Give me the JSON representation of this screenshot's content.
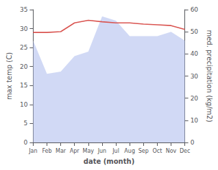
{
  "chart_data": {
    "type": "line",
    "xlabel": "date (month)",
    "ylabel": "max temp (C)",
    "y2label": "med. precipitation (kg/m2)",
    "categories": [
      "Jan",
      "Feb",
      "Mar",
      "Apr",
      "May",
      "Jun",
      "Jul",
      "Aug",
      "Sep",
      "Oct",
      "Nov",
      "Dec"
    ],
    "series": [
      {
        "type": "area",
        "axis": "y2",
        "color": "#b8c4f0",
        "values": [
          46,
          31,
          32,
          39,
          41,
          57,
          55,
          48,
          48,
          48,
          50,
          46
        ]
      },
      {
        "type": "line",
        "color": "#d9534f",
        "values": [
          29.0,
          29.0,
          29.2,
          31.5,
          32.2,
          31.8,
          31.5,
          31.5,
          31.2,
          31.0,
          30.8,
          29.8
        ]
      }
    ],
    "ylim": [
      0,
      35
    ],
    "yticks": [
      0,
      5,
      10,
      15,
      20,
      25,
      30,
      35
    ],
    "y2lim": [
      0,
      60
    ],
    "y2ticks": [
      0,
      10,
      20,
      30,
      40,
      50,
      60
    ],
    "grid": false
  }
}
